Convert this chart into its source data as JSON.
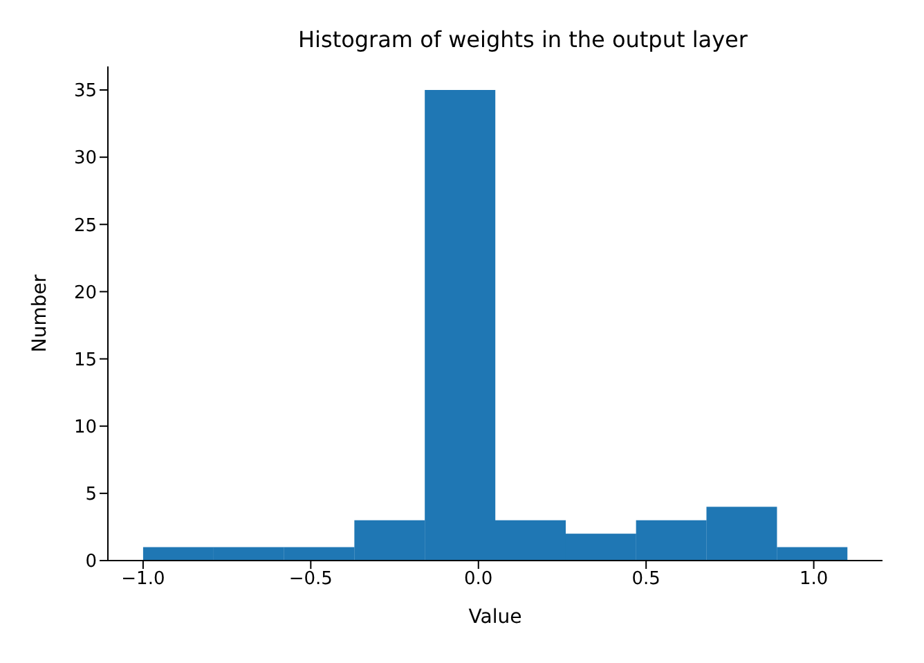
{
  "chart_data": {
    "type": "histogram",
    "title": "Histogram of weights in the output layer",
    "xlabel": "Value",
    "ylabel": "Number",
    "bins": [
      -1.0,
      -0.79,
      -0.58,
      -0.37,
      -0.16,
      0.05,
      0.26,
      0.47,
      0.68,
      0.89,
      1.1
    ],
    "values": [
      1,
      1,
      1,
      3,
      35,
      3,
      2,
      3,
      4,
      1
    ],
    "color": "#1f77b4",
    "xlim": [
      -1.105,
      1.205
    ],
    "xticks": [
      {
        "value": -1.0,
        "label": "−1.0"
      },
      {
        "value": -0.5,
        "label": "−0.5"
      },
      {
        "value": 0.0,
        "label": "0.0"
      },
      {
        "value": 0.5,
        "label": "0.5"
      },
      {
        "value": 1.0,
        "label": "1.0"
      }
    ],
    "ylim": [
      0,
      36.75
    ],
    "yticks": [
      0,
      5,
      10,
      15,
      20,
      25,
      30,
      35
    ],
    "grid": false
  }
}
